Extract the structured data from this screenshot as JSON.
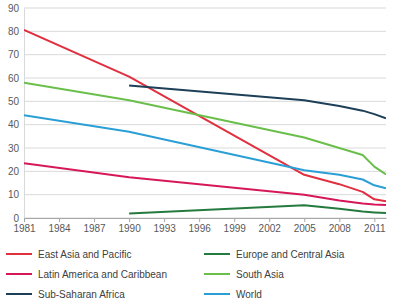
{
  "chart_data": {
    "type": "line",
    "x": [
      1981,
      1990,
      2005,
      2008,
      2010,
      2011,
      2012
    ],
    "series": [
      {
        "name": "East Asia and Pacific",
        "color": "#e0303f",
        "values": [
          80.6,
          60.6,
          18.5,
          14.5,
          11.2,
          8.0,
          7.2
        ]
      },
      {
        "name": "Europe and Central Asia",
        "color": "#257a3e",
        "values": [
          null,
          1.9,
          5.5,
          4.0,
          2.8,
          2.4,
          2.1
        ]
      },
      {
        "name": "Latin America and Caribbean",
        "color": "#d6185a",
        "values": [
          23.5,
          17.5,
          10.0,
          7.5,
          6.2,
          5.8,
          5.6
        ]
      },
      {
        "name": "South Asia",
        "color": "#6abf4b",
        "values": [
          58.0,
          50.5,
          34.5,
          30.0,
          27.0,
          22.0,
          18.7
        ]
      },
      {
        "name": "Sub-Saharan Africa",
        "color": "#1d3f58",
        "values": [
          null,
          56.8,
          50.5,
          48.0,
          46.0,
          44.5,
          42.7
        ]
      },
      {
        "name": "World",
        "color": "#2a9fd6",
        "values": [
          44.0,
          37.0,
          20.5,
          18.5,
          16.5,
          14.0,
          12.7
        ]
      }
    ],
    "xlim": [
      1981,
      2012
    ],
    "xticks": [
      1981,
      1984,
      1987,
      1990,
      1993,
      1996,
      1999,
      2002,
      2005,
      2008,
      2011
    ],
    "ylim": [
      0,
      90
    ],
    "yticks": [
      0,
      10,
      20,
      30,
      40,
      50,
      60,
      70,
      80,
      90
    ],
    "grid": true,
    "legend": "bottom"
  }
}
